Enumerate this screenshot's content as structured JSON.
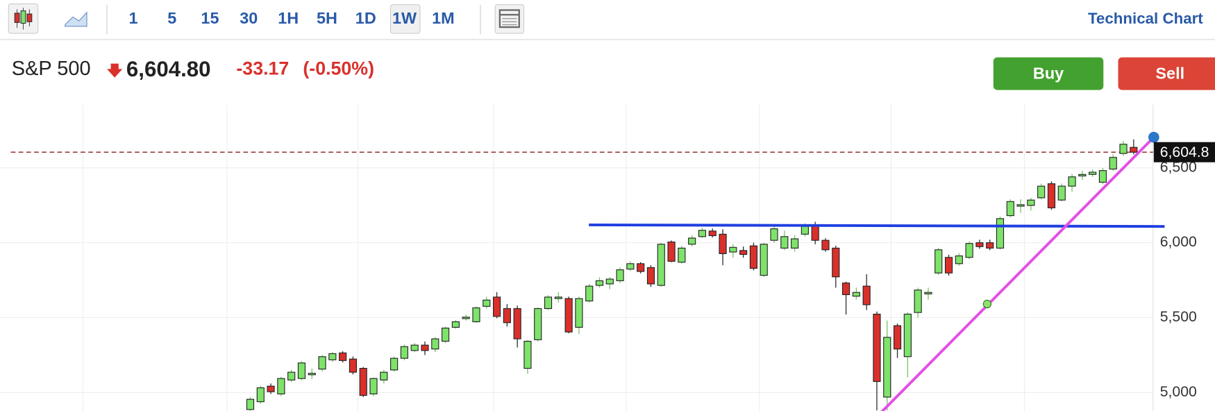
{
  "toolbar": {
    "intervals": [
      "1",
      "5",
      "15",
      "30",
      "1H",
      "5H",
      "1D",
      "1W",
      "1M"
    ],
    "title": "Technical Chart"
  },
  "header": {
    "name": "S&P 500",
    "price": "6,604.80",
    "change": "-33.17",
    "change_pct": "(-0.50%)"
  },
  "buttons": {
    "buy": "Buy",
    "sell": "Sell"
  },
  "chart_data": {
    "type": "candlestick",
    "open": [
      4886,
      4938,
      5042,
      4990,
      5083,
      5093,
      5118,
      5156,
      5218,
      5264,
      5223,
      5161,
      4990,
      5083,
      5150,
      5228,
      5280,
      5316,
      5290,
      5342,
      5435,
      5493,
      5472,
      5575,
      5637,
      5560,
      5560,
      5161,
      5352,
      5560,
      5627,
      5627,
      5435,
      5611,
      5715,
      5725,
      5746,
      5824,
      5860,
      5834,
      5715,
      6005,
      5870,
      5990,
      6041,
      6078,
      6057,
      5938,
      5948,
      5979,
      5782,
      6016,
      5964,
      5964,
      6057,
      6119,
      6016,
      5964,
      5731,
      5643,
      5710,
      5523,
      4969,
      5446,
      5239,
      5534,
      5658,
      5798,
      5902,
      5860,
      5902,
      6000,
      6000,
      5964,
      6181,
      6244,
      6249,
      6300,
      6394,
      6285,
      6378,
      6446,
      6456,
      6404,
      6492,
      6596,
      6637
    ],
    "high": [
      4970,
      5045,
      5060,
      5105,
      5150,
      5210,
      5160,
      5250,
      5270,
      5275,
      5240,
      5170,
      5100,
      5150,
      5240,
      5320,
      5330,
      5340,
      5370,
      5440,
      5485,
      5520,
      5575,
      5640,
      5670,
      5590,
      5580,
      5350,
      5570,
      5650,
      5670,
      5640,
      5640,
      5725,
      5770,
      5770,
      5835,
      5875,
      5870,
      5850,
      6000,
      6015,
      5980,
      6050,
      6100,
      6095,
      6090,
      5990,
      5975,
      6000,
      6000,
      6110,
      6080,
      6050,
      6130,
      6140,
      6030,
      5980,
      5740,
      5700,
      5790,
      5540,
      5480,
      5460,
      5535,
      5700,
      5700,
      5965,
      5920,
      5930,
      6010,
      6020,
      6020,
      6175,
      6290,
      6290,
      6300,
      6395,
      6410,
      6395,
      6460,
      6480,
      6490,
      6500,
      6590,
      6680,
      6690
    ],
    "low": [
      4870,
      4925,
      4990,
      4975,
      5070,
      5080,
      5090,
      5140,
      5205,
      5200,
      5120,
      4970,
      4975,
      5060,
      5140,
      5215,
      5270,
      5250,
      5270,
      5330,
      5425,
      5480,
      5465,
      5560,
      5495,
      5440,
      5300,
      5125,
      5340,
      5550,
      5600,
      5395,
      5390,
      5600,
      5700,
      5690,
      5730,
      5810,
      5795,
      5705,
      5705,
      5870,
      5860,
      5975,
      6030,
      6035,
      5850,
      5900,
      5900,
      5815,
      5770,
      6000,
      5950,
      5940,
      6040,
      5990,
      5940,
      5700,
      5520,
      5620,
      5550,
      4880,
      4880,
      5230,
      5100,
      5500,
      5620,
      5785,
      5780,
      5845,
      5890,
      5960,
      5950,
      5955,
      6170,
      6200,
      6215,
      6290,
      6220,
      6275,
      6340,
      6420,
      6440,
      6390,
      6480,
      6580,
      6590
    ],
    "close": [
      4954,
      5031,
      5005,
      5093,
      5135,
      5197,
      5128,
      5239,
      5259,
      5213,
      5135,
      4980,
      5093,
      5135,
      5228,
      5306,
      5316,
      5280,
      5358,
      5430,
      5472,
      5503,
      5565,
      5617,
      5508,
      5466,
      5358,
      5342,
      5560,
      5637,
      5637,
      5404,
      5627,
      5710,
      5746,
      5757,
      5819,
      5860,
      5808,
      5725,
      5990,
      5876,
      5964,
      6031,
      6083,
      6047,
      5927,
      5969,
      5922,
      5829,
      5990,
      6093,
      6041,
      6026,
      6109,
      6016,
      5953,
      5772,
      5653,
      5668,
      5586,
      5073,
      5368,
      5290,
      5523,
      5684,
      5668,
      5953,
      5798,
      5912,
      5995,
      5974,
      5964,
      6161,
      6275,
      6254,
      6285,
      6378,
      6233,
      6378,
      6440,
      6456,
      6471,
      6482,
      6570,
      6658,
      6604.8
    ],
    "ylim": [
      4876,
      6922
    ],
    "yticks": [
      {
        "value": 5000,
        "label": "5,000"
      },
      {
        "value": 5500,
        "label": "5,500"
      },
      {
        "value": 6000,
        "label": "6,000"
      },
      {
        "value": 6500,
        "label": "6,500"
      }
    ],
    "last_price": {
      "value": 6604.8,
      "label": "6,604.8"
    },
    "up_color": "#7ee26b",
    "down_color": "#d9302c",
    "grid": true
  }
}
